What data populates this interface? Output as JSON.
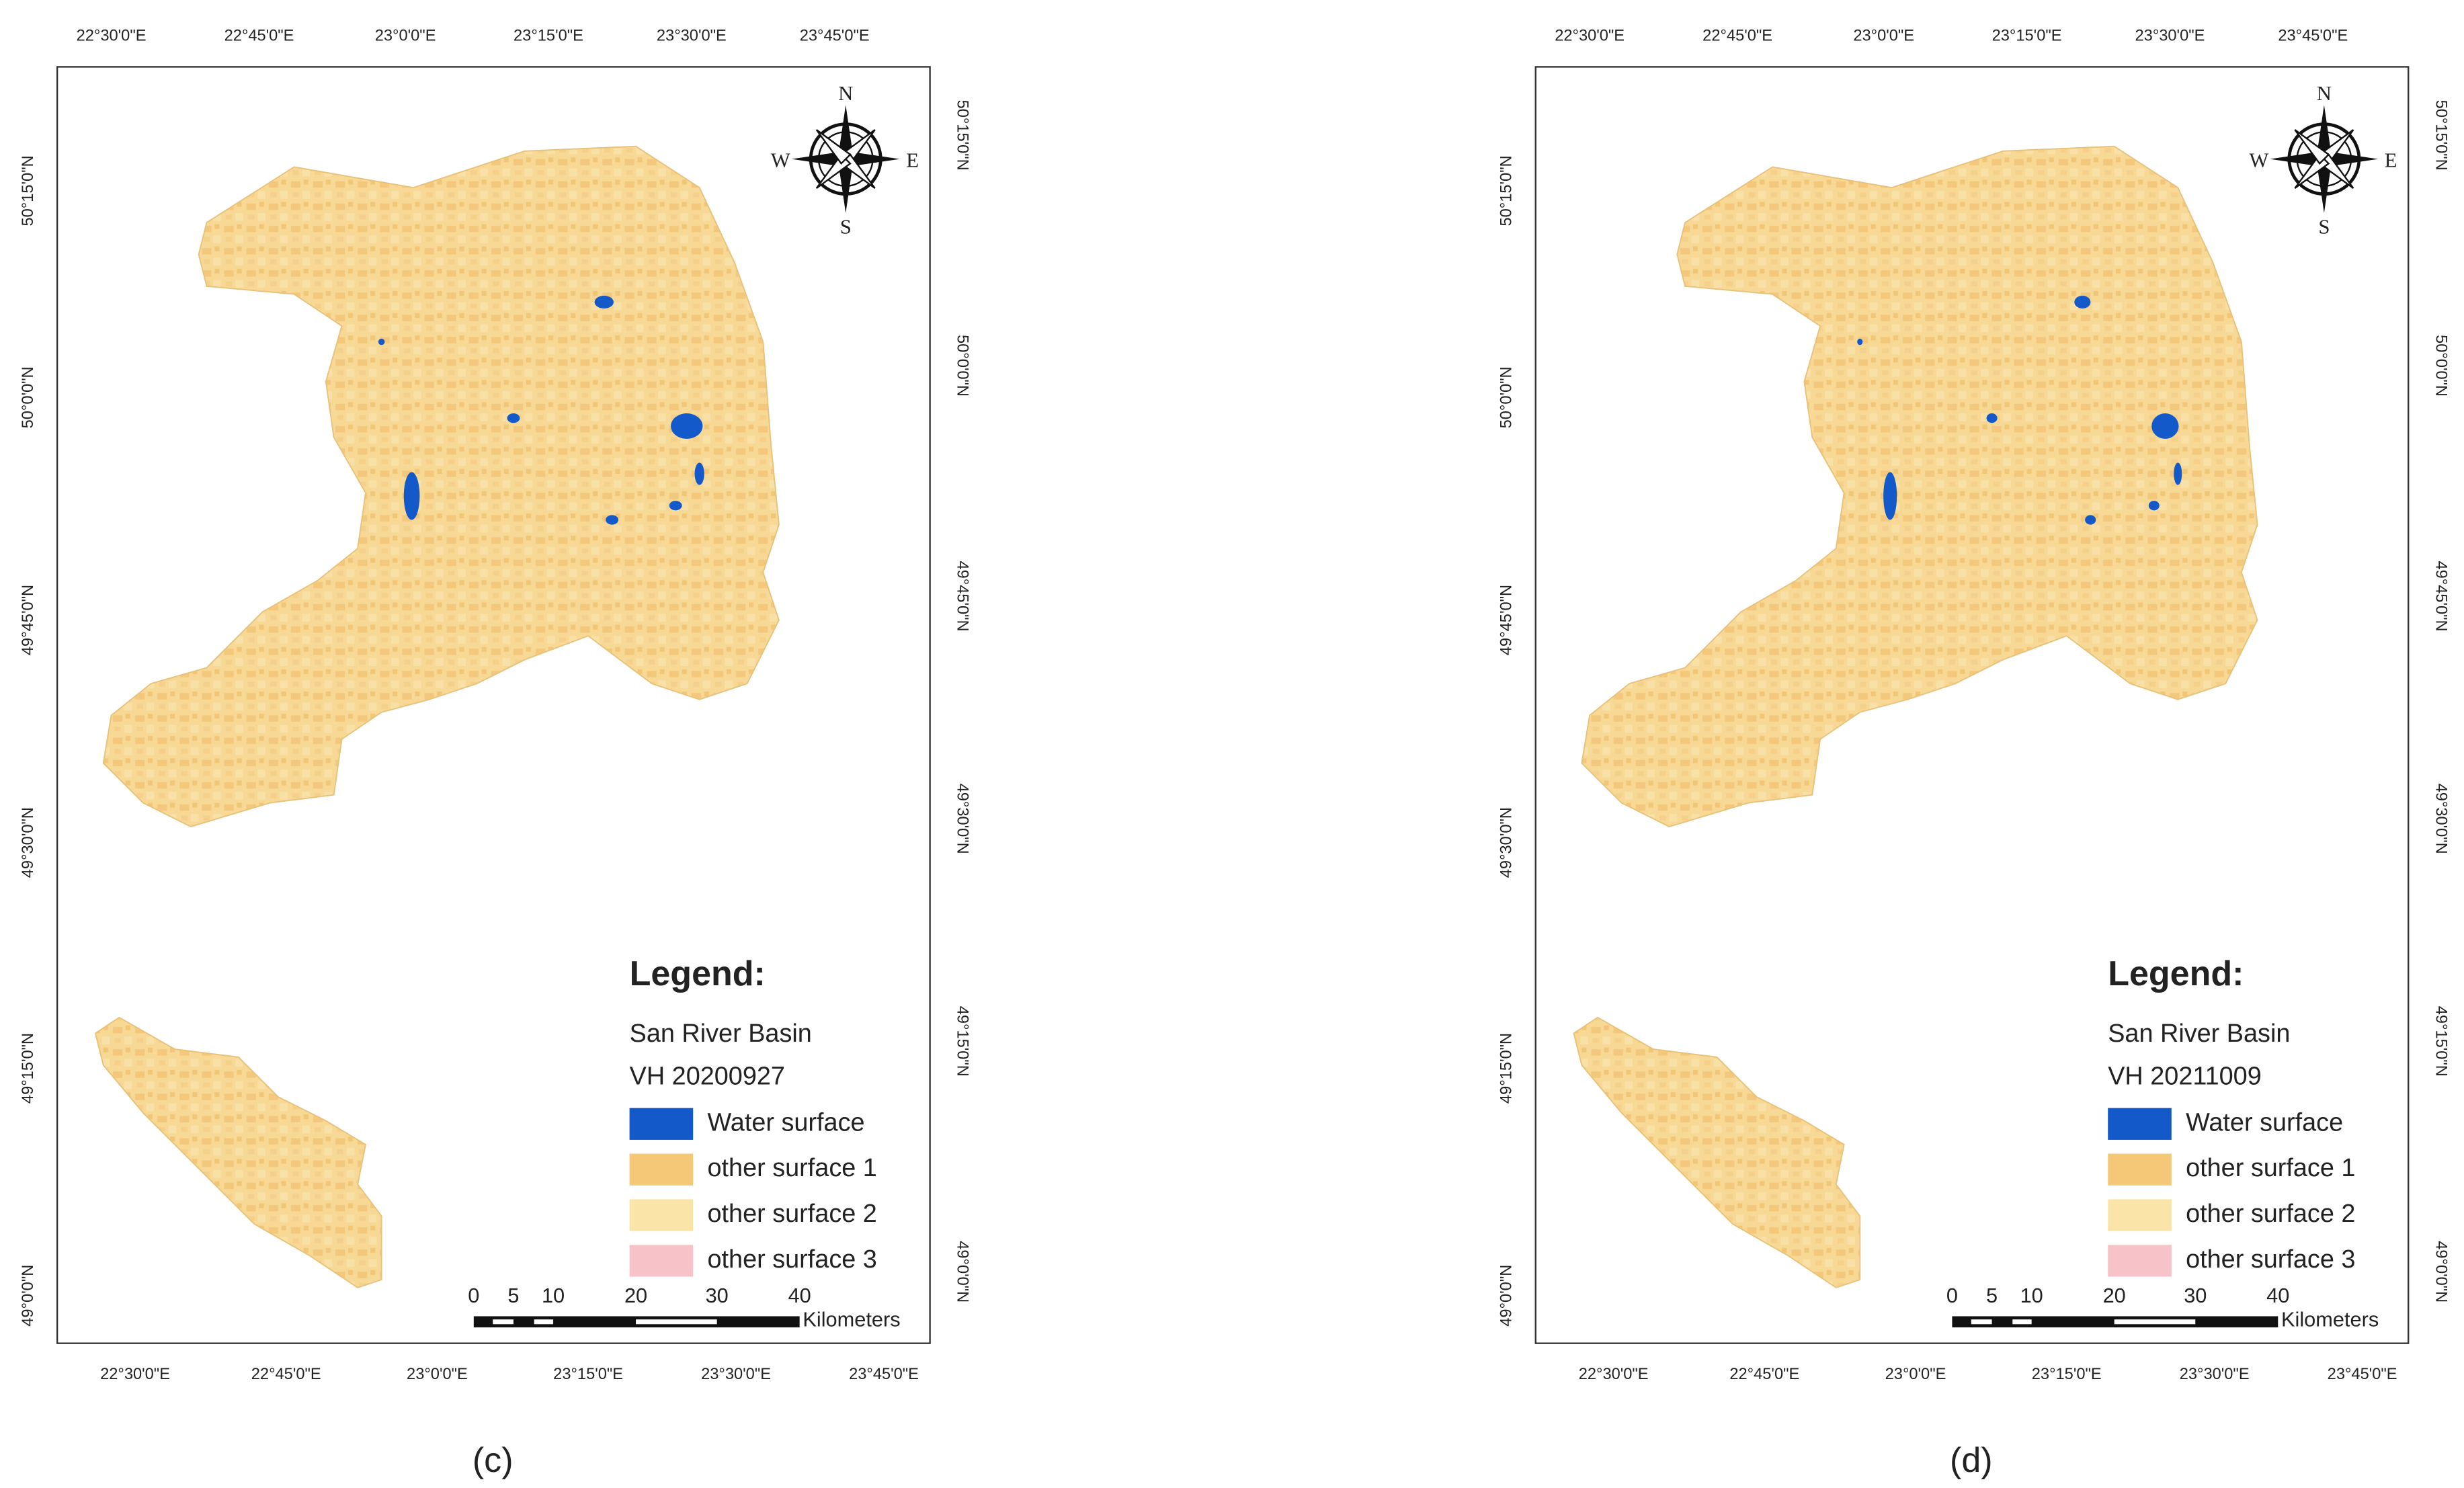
{
  "panels": [
    {
      "caption": "(c)",
      "top_labels": [
        "22°30'0\"E",
        "22°45'0\"E",
        "23°0'0\"E",
        "23°15'0\"E",
        "23°30'0\"E",
        "23°45'0\"E"
      ],
      "bottom_labels": [
        "22°30'0\"E",
        "22°45'0\"E",
        "23°0'0\"E",
        "23°15'0\"E",
        "23°30'0\"E",
        "23°45'0\"E"
      ],
      "left_labels": [
        "50°15'0\"N",
        "50°0'0\"N",
        "49°45'0\"N",
        "49°30'0\"N",
        "49°15'0\"N",
        "49°0'0\"N"
      ],
      "right_labels": [
        "50°15'0\"N",
        "50°0'0\"N",
        "49°45'0\"N",
        "49°30'0\"N",
        "49°15'0\"N",
        "49°0'0\"N"
      ],
      "compass": [
        "N",
        "E",
        "S",
        "W"
      ],
      "legend": {
        "title": "Legend:",
        "basin": "San River Basin",
        "date": "VH 20200927",
        "classes": [
          {
            "label": "Water surface",
            "color": "#1459c9"
          },
          {
            "label": "other surface 1",
            "color": "#f5c878"
          },
          {
            "label": "other surface 2",
            "color": "#fbe4a8"
          },
          {
            "label": "other surface 3",
            "color": "#f7c2c8"
          }
        ]
      },
      "scale": {
        "ticks": [
          0,
          5,
          10,
          20,
          30,
          40
        ],
        "unit": "Kilometers"
      }
    },
    {
      "caption": "(d)",
      "top_labels": [
        "22°30'0\"E",
        "22°45'0\"E",
        "23°0'0\"E",
        "23°15'0\"E",
        "23°30'0\"E",
        "23°45'0\"E"
      ],
      "bottom_labels": [
        "22°30'0\"E",
        "22°45'0\"E",
        "23°0'0\"E",
        "23°15'0\"E",
        "23°30'0\"E",
        "23°45'0\"E"
      ],
      "left_labels": [
        "50°15'0\"N",
        "50°0'0\"N",
        "49°45'0\"N",
        "49°30'0\"N",
        "49°15'0\"N",
        "49°0'0\"N"
      ],
      "right_labels": [
        "50°15'0\"N",
        "50°0'0\"N",
        "49°45'0\"N",
        "49°30'0\"N",
        "49°15'0\"N",
        "49°0'0\"N"
      ],
      "compass": [
        "N",
        "E",
        "S",
        "W"
      ],
      "legend": {
        "title": "Legend:",
        "basin": "San River Basin",
        "date": "VH 20211009",
        "classes": [
          {
            "label": "Water surface",
            "color": "#1459c9"
          },
          {
            "label": "other surface 1",
            "color": "#f5c878"
          },
          {
            "label": "other surface 2",
            "color": "#fbe4a8"
          },
          {
            "label": "other surface 3",
            "color": "#f7c2c8"
          }
        ]
      },
      "scale": {
        "ticks": [
          0,
          5,
          10,
          20,
          30,
          40
        ],
        "unit": "Kilometers"
      }
    }
  ]
}
